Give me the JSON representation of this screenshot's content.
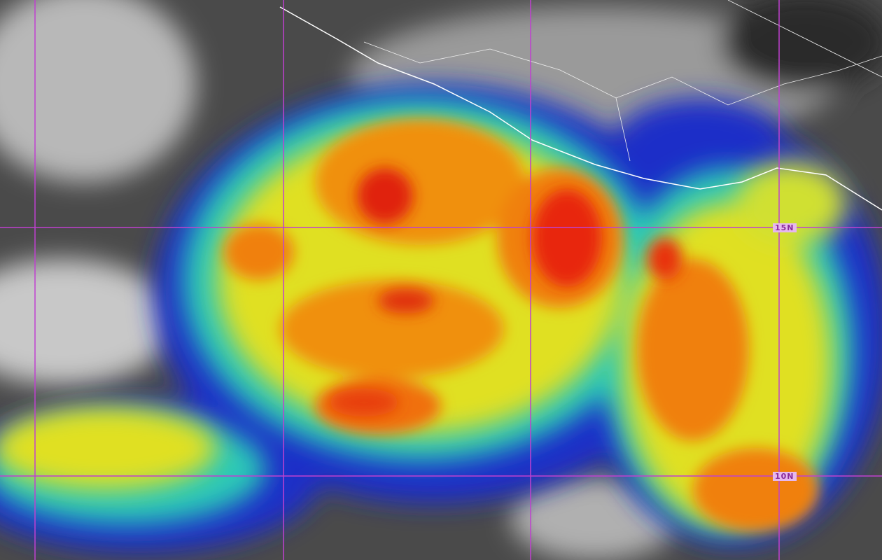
{
  "imagery": {
    "type": "enhanced infrared satellite image",
    "gridline_color": "#c040d0",
    "coastline_color": "#ffffff"
  },
  "grid_labels": {
    "lat_15": "15N",
    "lat_10": "10N"
  },
  "colors": {
    "land": "#8c8c8c",
    "ocean_clouds": "#3a3a3a",
    "cold_blue": "#1a2ad0",
    "cyan": "#2ad0c0",
    "yellow": "#e8e020",
    "orange": "#f08010",
    "red": "#e82010"
  }
}
